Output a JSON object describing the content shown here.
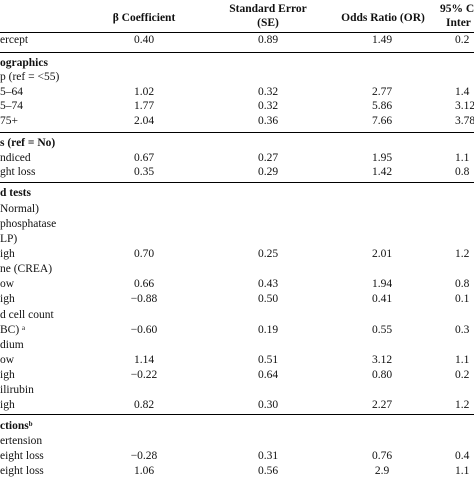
{
  "columns": {
    "beta": "β Coefficient",
    "se_line1": "Standard Error",
    "se_line2": "(SE)",
    "or": "Odds Ratio (OR)",
    "ci_line1": "95% C",
    "ci_line2": "Inter"
  },
  "rows": [
    {
      "label": "ercept",
      "beta": "0.40",
      "se": "0.89",
      "or": "1.49",
      "ci": "0.2"
    },
    {
      "label": "ographics",
      "section": true
    },
    {
      "label": "p (ref = <55)"
    },
    {
      "label": "5–64",
      "beta": "1.02",
      "se": "0.32",
      "or": "2.77",
      "ci": "1.4"
    },
    {
      "label": "5–74",
      "beta": "1.77",
      "se": "0.32",
      "or": "5.86",
      "ci": "3.12"
    },
    {
      "label": "75+",
      "beta": "2.04",
      "se": "0.36",
      "or": "7.66",
      "ci": "3.78"
    },
    {
      "label": "s (ref = No)",
      "section": true
    },
    {
      "label": "ndiced",
      "beta": "0.67",
      "se": "0.27",
      "or": "1.95",
      "ci": "1.1"
    },
    {
      "label": "ght loss",
      "beta": "0.35",
      "se": "0.29",
      "or": "1.42",
      "ci": "0.8"
    },
    {
      "label": "d tests",
      "section": true
    },
    {
      "label": "Normal)"
    },
    {
      "label": "phosphatase"
    },
    {
      "label": "LP)"
    },
    {
      "label": "igh",
      "beta": "0.70",
      "se": "0.25",
      "or": "2.01",
      "ci": "1.2"
    },
    {
      "label": "ne (CREA)"
    },
    {
      "label": "ow",
      "beta": "0.66",
      "se": "0.43",
      "or": "1.94",
      "ci": "0.8"
    },
    {
      "label": "igh",
      "beta": "−0.88",
      "se": "0.50",
      "or": "0.41",
      "ci": "0.1"
    },
    {
      "label": "d cell count"
    },
    {
      "label": "BC) ᵃ",
      "beta": "−0.60",
      "se": "0.19",
      "or": "0.55",
      "ci": "0.3"
    },
    {
      "label": "dium"
    },
    {
      "label": "ow",
      "beta": "1.14",
      "se": "0.51",
      "or": "3.12",
      "ci": "1.1"
    },
    {
      "label": "igh",
      "beta": "−0.22",
      "se": "0.64",
      "or": "0.80",
      "ci": "0.2"
    },
    {
      "label": "ilirubin"
    },
    {
      "label": "igh",
      "beta": "0.82",
      "se": "0.30",
      "or": "2.27",
      "ci": "1.2"
    },
    {
      "label": "ctionsᵇ",
      "section": true
    },
    {
      "label": "ertension"
    },
    {
      "label": "eight loss",
      "beta": "−0.28",
      "se": "0.31",
      "or": "0.76",
      "ci": "0.4"
    },
    {
      "label": "eight loss",
      "beta": "1.06",
      "se": "0.56",
      "or": "2.9",
      "ci": "1.1"
    }
  ]
}
